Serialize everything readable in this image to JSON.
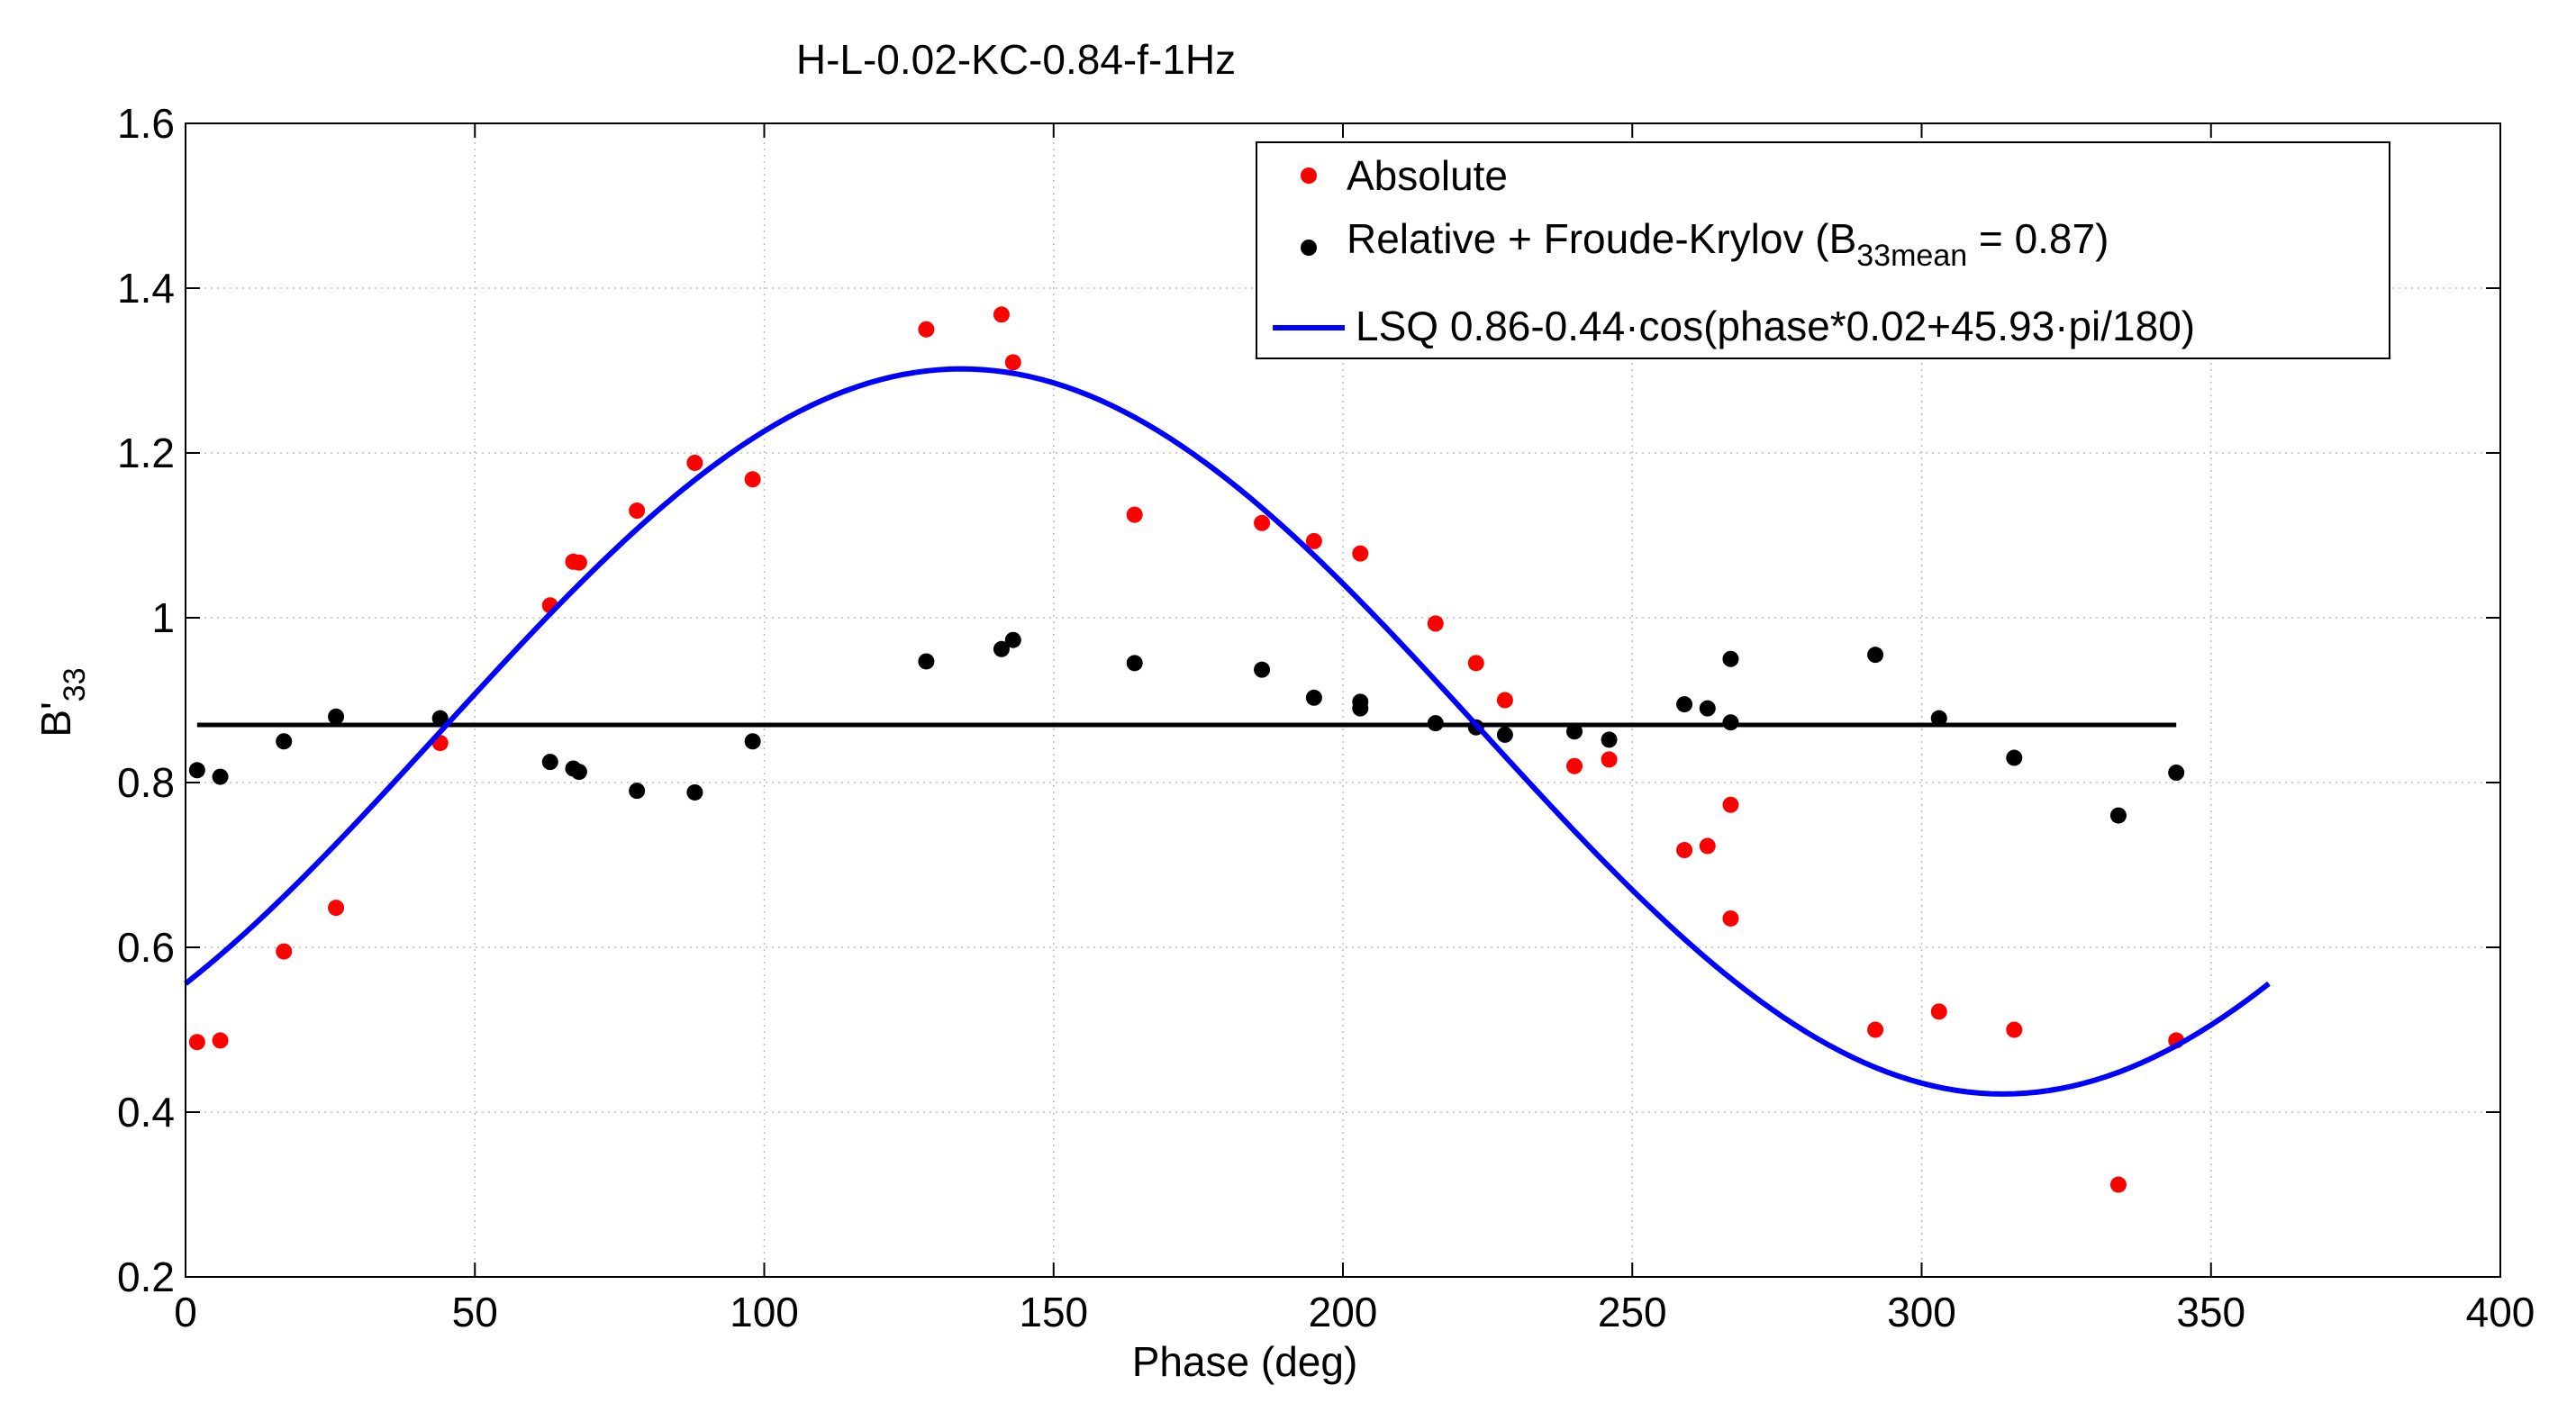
{
  "chart_data": {
    "type": "scatter",
    "title": "H-L-0.02-KC-0.84-f-1Hz",
    "xlabel": "Phase (deg)",
    "ylabel_main": "B'",
    "ylabel_sub": "33",
    "xlim": [
      0,
      400
    ],
    "ylim": [
      0.2,
      1.6
    ],
    "xticks": [
      0,
      50,
      100,
      150,
      200,
      250,
      300,
      350,
      400
    ],
    "xtick_labels": [
      "0",
      "50",
      "100",
      "150",
      "200",
      "250",
      "300",
      "350",
      "400"
    ],
    "yticks": [
      0.2,
      0.4,
      0.6,
      0.8,
      1.0,
      1.2,
      1.4,
      1.6
    ],
    "ytick_labels": [
      "0.2",
      "0.4",
      "0.6",
      "0.8",
      "1",
      "1.2",
      "1.4",
      "1.6"
    ],
    "grid": true,
    "legend_position": "top-right",
    "colors": {
      "absolute": "#ff0000",
      "relative": "#000000",
      "fit": "#0000ff",
      "mean": "#000000"
    },
    "series": [
      {
        "name": "Absolute",
        "kind": "markers",
        "points": [
          [
            2,
            0.485
          ],
          [
            6,
            0.487
          ],
          [
            17,
            0.595
          ],
          [
            26,
            0.648
          ],
          [
            44,
            0.848
          ],
          [
            63,
            1.015
          ],
          [
            67,
            1.068
          ],
          [
            68,
            1.067
          ],
          [
            78,
            1.13
          ],
          [
            88,
            1.188
          ],
          [
            98,
            1.168
          ],
          [
            128,
            1.35
          ],
          [
            141,
            1.368
          ],
          [
            143,
            1.31
          ],
          [
            164,
            1.125
          ],
          [
            186,
            1.115
          ],
          [
            195,
            1.093
          ],
          [
            203,
            1.078
          ],
          [
            216,
            0.993
          ],
          [
            223,
            0.945
          ],
          [
            228,
            0.9
          ],
          [
            240,
            0.82
          ],
          [
            246,
            0.828
          ],
          [
            259,
            0.718
          ],
          [
            263,
            0.723
          ],
          [
            267,
            0.773
          ],
          [
            267,
            0.635
          ],
          [
            292,
            0.5
          ],
          [
            303,
            0.522
          ],
          [
            316,
            0.5
          ],
          [
            334,
            0.312
          ],
          [
            344,
            0.487
          ]
        ]
      },
      {
        "name": "Relative + Froude-Krylov",
        "legend_main": "Relative + Froude-Krylov (B",
        "legend_sub": "33mean",
        "legend_tail": " = 0.87)",
        "kind": "markers",
        "points": [
          [
            2,
            0.815
          ],
          [
            6,
            0.807
          ],
          [
            17,
            0.85
          ],
          [
            26,
            0.88
          ],
          [
            44,
            0.878
          ],
          [
            63,
            0.825
          ],
          [
            67,
            0.817
          ],
          [
            68,
            0.813
          ],
          [
            78,
            0.79
          ],
          [
            88,
            0.788
          ],
          [
            98,
            0.85
          ],
          [
            128,
            0.947
          ],
          [
            141,
            0.962
          ],
          [
            143,
            0.973
          ],
          [
            164,
            0.945
          ],
          [
            186,
            0.937
          ],
          [
            195,
            0.903
          ],
          [
            203,
            0.898
          ],
          [
            203,
            0.89
          ],
          [
            216,
            0.872
          ],
          [
            223,
            0.867
          ],
          [
            228,
            0.858
          ],
          [
            240,
            0.862
          ],
          [
            246,
            0.852
          ],
          [
            259,
            0.895
          ],
          [
            263,
            0.89
          ],
          [
            267,
            0.95
          ],
          [
            267,
            0.873
          ],
          [
            292,
            0.955
          ],
          [
            303,
            0.878
          ],
          [
            316,
            0.83
          ],
          [
            334,
            0.76
          ],
          [
            344,
            0.812
          ]
        ]
      },
      {
        "name": "LSQ 0.86-0.44·cos(phase*0.02+45.93·pi/180)",
        "kind": "line",
        "x_range": [
          0,
          360
        ],
        "offset": 0.862,
        "amplitude": 0.44,
        "phase_offset_deg": 45.93
      },
      {
        "name": "B33mean",
        "kind": "hline",
        "value": 0.87,
        "x_range": [
          2,
          344
        ]
      }
    ]
  }
}
